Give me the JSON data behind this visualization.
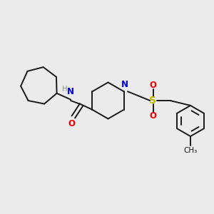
{
  "background_color": "#ebebeb",
  "bond_color": "#1a1a1a",
  "nitrogen_color": "#0000ee",
  "oxygen_color": "#ee0000",
  "sulfur_color": "#bbbb00",
  "hydrogen_color": "#7a9a7a",
  "bond_width": 1.4,
  "font_size": 8.5,
  "figsize": [
    3.0,
    3.0
  ],
  "dpi": 100,
  "xlim": [
    0,
    10
  ],
  "ylim": [
    0,
    10
  ]
}
